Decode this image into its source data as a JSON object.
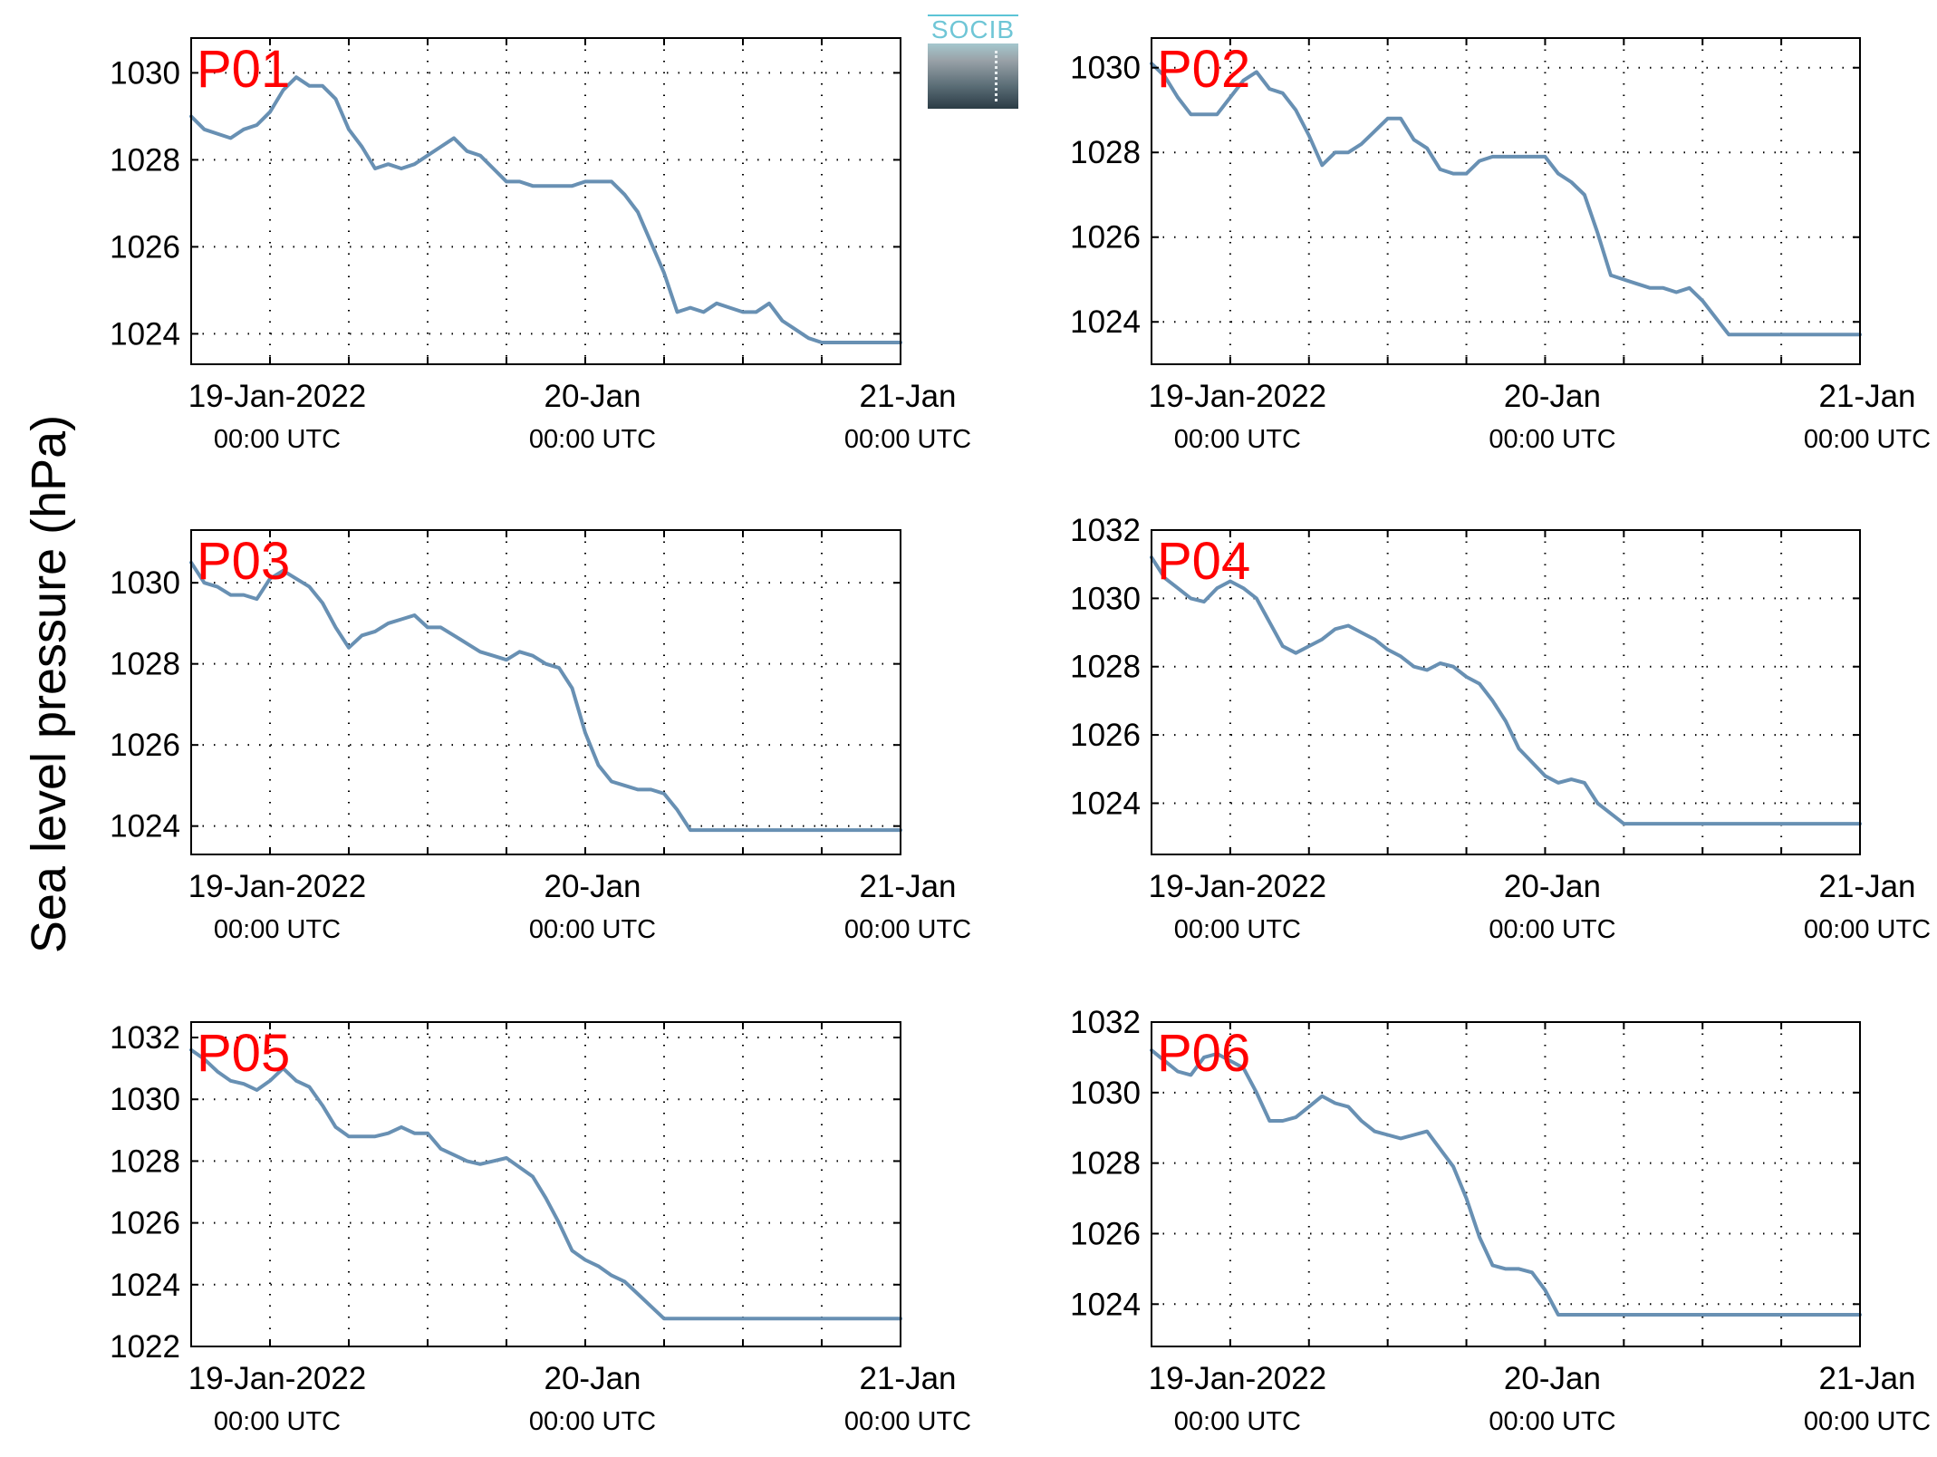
{
  "figure": {
    "ylabel": "Sea level pressure (hPa)",
    "logo_text": "SOCIB",
    "colors": {
      "line": "#6890b3",
      "label": "#ff0000",
      "grid": "#000000"
    }
  },
  "chart_data": [
    {
      "type": "line",
      "label": "P01",
      "ylim": [
        1023.3,
        1030.8
      ],
      "yticks": [
        1024,
        1026,
        1028,
        1030
      ],
      "x_ticks_hours": [
        0,
        24,
        48
      ],
      "x_tick_labels": [
        [
          "19-Jan-2022",
          "00:00 UTC"
        ],
        [
          "20-Jan",
          "00:00 UTC"
        ],
        [
          "21-Jan",
          "00:00 UTC"
        ]
      ],
      "grid": true,
      "xlim_hours": [
        -6,
        48
      ],
      "x": [
        -6,
        -5,
        -4,
        -3,
        -2,
        -1,
        0,
        1,
        2,
        3,
        4,
        5,
        6,
        7,
        8,
        9,
        10,
        11,
        12,
        13,
        14,
        15,
        16,
        17,
        18,
        19,
        20,
        21,
        22,
        23,
        24,
        25,
        26,
        27,
        28,
        29,
        30,
        31,
        32,
        33,
        34,
        35,
        36,
        37,
        38,
        39,
        40,
        41,
        42,
        43,
        44,
        45,
        46,
        47,
        48
      ],
      "values": [
        1029.0,
        1028.7,
        1028.6,
        1028.5,
        1028.7,
        1028.8,
        1029.1,
        1029.6,
        1029.9,
        1029.7,
        1029.7,
        1029.4,
        1028.7,
        1028.3,
        1027.8,
        1027.9,
        1027.8,
        1027.9,
        1028.1,
        1028.3,
        1028.5,
        1028.2,
        1028.1,
        1027.8,
        1027.5,
        1027.5,
        1027.4,
        1027.4,
        1027.4,
        1027.4,
        1027.5,
        1027.5,
        1027.5,
        1027.2,
        1026.8,
        1026.1,
        1025.4,
        1024.5,
        1024.6,
        1024.5,
        1024.7,
        1024.6,
        1024.5,
        1024.5,
        1024.7,
        1024.3,
        1024.1,
        1023.9,
        1023.8,
        1023.8,
        1023.8,
        1023.8,
        1023.8,
        1023.8,
        1023.8
      ]
    },
    {
      "type": "line",
      "label": "P02",
      "ylim": [
        1023.0,
        1030.7
      ],
      "yticks": [
        1024,
        1026,
        1028,
        1030
      ],
      "x_ticks_hours": [
        0,
        24,
        48
      ],
      "x_tick_labels": [
        [
          "19-Jan-2022",
          "00:00 UTC"
        ],
        [
          "20-Jan",
          "00:00 UTC"
        ],
        [
          "21-Jan",
          "00:00 UTC"
        ]
      ],
      "grid": true,
      "xlim_hours": [
        -6,
        48
      ],
      "x": [
        -6,
        -5,
        -4,
        -3,
        -2,
        -1,
        0,
        1,
        2,
        3,
        4,
        5,
        6,
        7,
        8,
        9,
        10,
        11,
        12,
        13,
        14,
        15,
        16,
        17,
        18,
        19,
        20,
        21,
        22,
        23,
        24,
        25,
        26,
        27,
        28,
        29,
        30,
        31,
        32,
        33,
        34,
        35,
        36,
        37,
        38,
        39,
        40,
        41,
        42,
        43,
        44,
        45,
        46,
        47,
        48
      ],
      "values": [
        1030.1,
        1029.8,
        1029.3,
        1028.9,
        1028.9,
        1028.9,
        1029.3,
        1029.7,
        1029.9,
        1029.5,
        1029.4,
        1029.0,
        1028.4,
        1027.7,
        1028.0,
        1028.0,
        1028.2,
        1028.5,
        1028.8,
        1028.8,
        1028.3,
        1028.1,
        1027.6,
        1027.5,
        1027.5,
        1027.8,
        1027.9,
        1027.9,
        1027.9,
        1027.9,
        1027.9,
        1027.5,
        1027.3,
        1027.0,
        1026.1,
        1025.1,
        1025.0,
        1024.9,
        1024.8,
        1024.8,
        1024.7,
        1024.8,
        1024.5,
        1024.1,
        1023.7,
        1023.7,
        1023.7,
        1023.7,
        1023.7,
        1023.7,
        1023.7,
        1023.7,
        1023.7,
        1023.7,
        1023.7
      ]
    },
    {
      "type": "line",
      "label": "P03",
      "ylim": [
        1023.3,
        1031.3
      ],
      "yticks": [
        1024,
        1026,
        1028,
        1030
      ],
      "x_ticks_hours": [
        0,
        24,
        48
      ],
      "x_tick_labels": [
        [
          "19-Jan-2022",
          "00:00 UTC"
        ],
        [
          "20-Jan",
          "00:00 UTC"
        ],
        [
          "21-Jan",
          "00:00 UTC"
        ]
      ],
      "grid": true,
      "xlim_hours": [
        -6,
        48
      ],
      "x": [
        -6,
        -5,
        -4,
        -3,
        -2,
        -1,
        0,
        1,
        2,
        3,
        4,
        5,
        6,
        7,
        8,
        9,
        10,
        11,
        12,
        13,
        14,
        15,
        16,
        17,
        18,
        19,
        20,
        21,
        22,
        23,
        24,
        25,
        26,
        27,
        28,
        29,
        30,
        31,
        32,
        33,
        34,
        35,
        36,
        37,
        38,
        39,
        40,
        41,
        42,
        43,
        44,
        45,
        46,
        47,
        48
      ],
      "values": [
        1030.5,
        1030.0,
        1029.9,
        1029.7,
        1029.7,
        1029.6,
        1030.1,
        1030.3,
        1030.1,
        1029.9,
        1029.5,
        1028.9,
        1028.4,
        1028.7,
        1028.8,
        1029.0,
        1029.1,
        1029.2,
        1028.9,
        1028.9,
        1028.7,
        1028.5,
        1028.3,
        1028.2,
        1028.1,
        1028.3,
        1028.2,
        1028.0,
        1027.9,
        1027.4,
        1026.3,
        1025.5,
        1025.1,
        1025.0,
        1024.9,
        1024.9,
        1024.8,
        1024.4,
        1023.9,
        1023.9,
        1023.9,
        1023.9,
        1023.9,
        1023.9,
        1023.9,
        1023.9,
        1023.9,
        1023.9,
        1023.9,
        1023.9,
        1023.9,
        1023.9,
        1023.9,
        1023.9,
        1023.9
      ]
    },
    {
      "type": "line",
      "label": "P04",
      "ylim": [
        1022.5,
        1032.0
      ],
      "yticks": [
        1024,
        1026,
        1028,
        1030,
        1032
      ],
      "x_ticks_hours": [
        0,
        24,
        48
      ],
      "x_tick_labels": [
        [
          "19-Jan-2022",
          "00:00 UTC"
        ],
        [
          "20-Jan",
          "00:00 UTC"
        ],
        [
          "21-Jan",
          "00:00 UTC"
        ]
      ],
      "grid": true,
      "xlim_hours": [
        -6,
        48
      ],
      "x": [
        -6,
        -5,
        -4,
        -3,
        -2,
        -1,
        0,
        1,
        2,
        3,
        4,
        5,
        6,
        7,
        8,
        9,
        10,
        11,
        12,
        13,
        14,
        15,
        16,
        17,
        18,
        19,
        20,
        21,
        22,
        23,
        24,
        25,
        26,
        27,
        28,
        29,
        30,
        31,
        32,
        33,
        34,
        35,
        36,
        37,
        38,
        39,
        40,
        41,
        42,
        43,
        44,
        45,
        46,
        47,
        48
      ],
      "values": [
        1031.2,
        1030.6,
        1030.3,
        1030.0,
        1029.9,
        1030.3,
        1030.5,
        1030.3,
        1030.0,
        1029.3,
        1028.6,
        1028.4,
        1028.6,
        1028.8,
        1029.1,
        1029.2,
        1029.0,
        1028.8,
        1028.5,
        1028.3,
        1028.0,
        1027.9,
        1028.1,
        1028.0,
        1027.7,
        1027.5,
        1027.0,
        1026.4,
        1025.6,
        1025.2,
        1024.8,
        1024.6,
        1024.7,
        1024.6,
        1024.0,
        1023.7,
        1023.4,
        1023.4,
        1023.4,
        1023.4,
        1023.4,
        1023.4,
        1023.4,
        1023.4,
        1023.4,
        1023.4,
        1023.4,
        1023.4,
        1023.4,
        1023.4,
        1023.4,
        1023.4,
        1023.4,
        1023.4,
        1023.4
      ]
    },
    {
      "type": "line",
      "label": "P05",
      "ylim": [
        1022.0,
        1032.5
      ],
      "yticks": [
        1022,
        1024,
        1026,
        1028,
        1030,
        1032
      ],
      "x_ticks_hours": [
        0,
        24,
        48
      ],
      "x_tick_labels": [
        [
          "19-Jan-2022",
          "00:00 UTC"
        ],
        [
          "20-Jan",
          "00:00 UTC"
        ],
        [
          "21-Jan",
          "00:00 UTC"
        ]
      ],
      "grid": true,
      "xlim_hours": [
        -6,
        48
      ],
      "x": [
        -6,
        -5,
        -4,
        -3,
        -2,
        -1,
        0,
        1,
        2,
        3,
        4,
        5,
        6,
        7,
        8,
        9,
        10,
        11,
        12,
        13,
        14,
        15,
        16,
        17,
        18,
        19,
        20,
        21,
        22,
        23,
        24,
        25,
        26,
        27,
        28,
        29,
        30,
        31,
        32,
        33,
        34,
        35,
        36,
        37,
        38,
        39,
        40,
        41,
        42,
        43,
        44,
        45,
        46,
        47,
        48
      ],
      "values": [
        1031.6,
        1031.3,
        1030.9,
        1030.6,
        1030.5,
        1030.3,
        1030.6,
        1031.0,
        1030.6,
        1030.4,
        1029.8,
        1029.1,
        1028.8,
        1028.8,
        1028.8,
        1028.9,
        1029.1,
        1028.9,
        1028.9,
        1028.4,
        1028.2,
        1028.0,
        1027.9,
        1028.0,
        1028.1,
        1027.8,
        1027.5,
        1026.8,
        1026.0,
        1025.1,
        1024.8,
        1024.6,
        1024.3,
        1024.1,
        1023.7,
        1023.3,
        1022.9,
        1022.9,
        1022.9,
        1022.9,
        1022.9,
        1022.9,
        1022.9,
        1022.9,
        1022.9,
        1022.9,
        1022.9,
        1022.9,
        1022.9,
        1022.9,
        1022.9,
        1022.9,
        1022.9,
        1022.9,
        1022.9
      ]
    },
    {
      "type": "line",
      "label": "P06",
      "ylim": [
        1022.8,
        1032.0
      ],
      "yticks": [
        1024,
        1026,
        1028,
        1030,
        1032
      ],
      "x_ticks_hours": [
        0,
        24,
        48
      ],
      "x_tick_labels": [
        [
          "19-Jan-2022",
          "00:00 UTC"
        ],
        [
          "20-Jan",
          "00:00 UTC"
        ],
        [
          "21-Jan",
          "00:00 UTC"
        ]
      ],
      "grid": true,
      "xlim_hours": [
        -6,
        48
      ],
      "x": [
        -6,
        -5,
        -4,
        -3,
        -2,
        -1,
        0,
        1,
        2,
        3,
        4,
        5,
        6,
        7,
        8,
        9,
        10,
        11,
        12,
        13,
        14,
        15,
        16,
        17,
        18,
        19,
        20,
        21,
        22,
        23,
        24,
        25,
        26,
        27,
        28,
        29,
        30,
        31,
        32,
        33,
        34,
        35,
        36,
        37,
        38,
        39,
        40,
        41,
        42,
        43,
        44,
        45,
        46,
        47,
        48
      ],
      "values": [
        1031.2,
        1030.9,
        1030.6,
        1030.5,
        1031.0,
        1031.1,
        1030.9,
        1030.7,
        1030.0,
        1029.2,
        1029.2,
        1029.3,
        1029.6,
        1029.9,
        1029.7,
        1029.6,
        1029.2,
        1028.9,
        1028.8,
        1028.7,
        1028.8,
        1028.9,
        1028.4,
        1027.9,
        1027.0,
        1025.9,
        1025.1,
        1025.0,
        1025.0,
        1024.9,
        1024.4,
        1023.7,
        1023.7,
        1023.7,
        1023.7,
        1023.7,
        1023.7,
        1023.7,
        1023.7,
        1023.7,
        1023.7,
        1023.7,
        1023.7,
        1023.7,
        1023.7,
        1023.7,
        1023.7,
        1023.7,
        1023.7,
        1023.7,
        1023.7,
        1023.7,
        1023.7,
        1023.7,
        1023.7
      ]
    }
  ]
}
